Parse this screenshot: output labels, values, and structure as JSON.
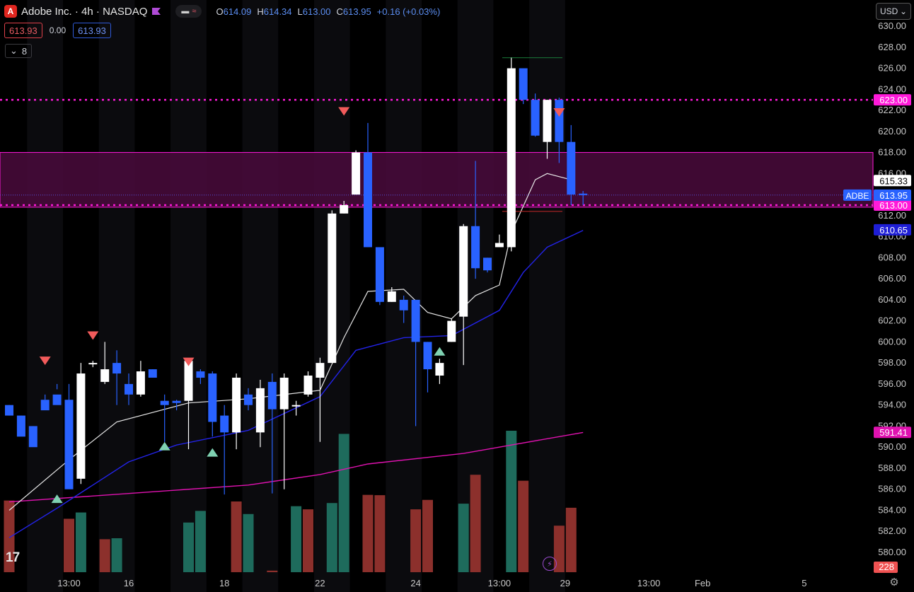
{
  "header": {
    "title": "Adobe Inc. · 4h · NASDAQ",
    "ohlc": [
      {
        "k": "O",
        "v": "614.09"
      },
      {
        "k": "H",
        "v": "614.34"
      },
      {
        "k": "L",
        "v": "613.00"
      },
      {
        "k": "C",
        "v": "613.95"
      }
    ],
    "change": "+0.16 (+0.03%)",
    "bid": "613.93",
    "spread": "0.00",
    "ask": "613.93",
    "indicator_count": "8",
    "currency": "USD"
  },
  "icons": {
    "logo": "adobe-logo-icon",
    "flag": "flag-icon",
    "minus": "minus-icon",
    "wave": "approx-icon",
    "chevron": "chevron-down-icon",
    "tv": "tradingview-logo-icon",
    "flash": "flash-icon",
    "gear": "gear-icon"
  },
  "colors": {
    "background": "#000000",
    "bull_candle": "#ffffff",
    "bear_candle": "#2962ff",
    "level_line": "#ff1ad9",
    "zone_fill": "#4a0a3c",
    "ema_fast": "#e6e6e6",
    "ema_mid": "#2323e8",
    "ema_slow": "#e012b0",
    "vol_up": "#1e6b5c",
    "vol_down": "#8c302c",
    "marker_sell": "#f25b5b",
    "marker_buy": "#7fd1b2"
  },
  "chart_data": {
    "type": "candlestick",
    "symbol": "ADBE",
    "interval": "4h",
    "ylim": [
      579,
      631
    ],
    "y_ticks": [
      "630.00",
      "628.00",
      "626.00",
      "624.00",
      "622.00",
      "620.00",
      "618.00",
      "616.00",
      "614.00",
      "612.00",
      "610.00",
      "608.00",
      "606.00",
      "604.00",
      "602.00",
      "600.00",
      "598.00",
      "596.00",
      "594.00",
      "592.00",
      "590.00",
      "588.00",
      "586.00",
      "584.00",
      "582.00",
      "580.00"
    ],
    "x_ticks": [
      "13:00",
      "16",
      "18",
      "22",
      "24",
      "13:00",
      "29",
      "13:00",
      "Feb",
      "5"
    ],
    "candles": [
      [
        594.0,
        593.0,
        594.0,
        593.0
      ],
      [
        593.0,
        591.0,
        593.0,
        592.0
      ],
      [
        592.0,
        590.0,
        592.0,
        591.0
      ],
      [
        594.5,
        593.5,
        595.0,
        594.5
      ],
      [
        595.0,
        594.0,
        596.0,
        595.5
      ],
      [
        594.5,
        586.0,
        596.0,
        587.0
      ],
      [
        587.0,
        597.0,
        598.0,
        586.5
      ],
      [
        598.0,
        598.0,
        598.2,
        597.6
      ],
      [
        596.2,
        597.4,
        600.0,
        596.0
      ],
      [
        598.0,
        597.0,
        599.2,
        594.0
      ],
      [
        596.0,
        595.0,
        597.0,
        594.0
      ],
      [
        595.0,
        597.2,
        598.2,
        594.8
      ],
      [
        597.4,
        596.6,
        597.4,
        596.6
      ],
      [
        594.4,
        594.0,
        595.0,
        590.5
      ],
      [
        594.4,
        594.2,
        594.5,
        593.5
      ],
      [
        594.4,
        598.2,
        598.4,
        589.8
      ],
      [
        597.2,
        596.6,
        597.4,
        596.0
      ],
      [
        597.0,
        592.4,
        597.2,
        591.0
      ],
      [
        593.0,
        591.4,
        594.0,
        585.5
      ],
      [
        591.4,
        596.6,
        597.0,
        589.8
      ],
      [
        595.0,
        594.0,
        595.6,
        593.5
      ],
      [
        591.4,
        595.6,
        596.4,
        590.0
      ],
      [
        596.2,
        593.6,
        597.0,
        585.6
      ],
      [
        593.6,
        596.6,
        597.0,
        586.0
      ],
      [
        594.0,
        594.0,
        594.4,
        593.0
      ],
      [
        595.0,
        596.8,
        597.2,
        594.8
      ],
      [
        596.6,
        598.0,
        598.5,
        590.5
      ],
      [
        598.0,
        612.2,
        612.5,
        598.0
      ],
      [
        612.2,
        613.0,
        613.4,
        612.2
      ],
      [
        614.0,
        618.0,
        618.2,
        614.0
      ],
      [
        618.0,
        609.0,
        620.8,
        609.0
      ],
      [
        609.0,
        603.8,
        609.0,
        603.5
      ],
      [
        603.8,
        604.8,
        605.2,
        603.8
      ],
      [
        604.0,
        603.0,
        604.4,
        601.8
      ],
      [
        604.0,
        600.0,
        604.0,
        592.0
      ],
      [
        600.0,
        597.4,
        600.0,
        595.2
      ],
      [
        596.8,
        598.0,
        598.4,
        596.0
      ],
      [
        600.0,
        602.0,
        602.2,
        600.0
      ],
      [
        602.4,
        611.0,
        611.2,
        597.8
      ],
      [
        611.0,
        607.0,
        617.2,
        606.0
      ],
      [
        608.0,
        606.8,
        608.0,
        606.6
      ],
      [
        609.0,
        609.4,
        610.2,
        609.0
      ],
      [
        609.0,
        626.0,
        627.0,
        608.6
      ],
      [
        626.0,
        623.0,
        626.0,
        622.6
      ],
      [
        623.0,
        619.6,
        623.6,
        619.5
      ],
      [
        619.0,
        623.0,
        623.0,
        617.4
      ],
      [
        623.0,
        619.0,
        623.2,
        617.0
      ],
      [
        619.0,
        614.0,
        620.6,
        613.0
      ],
      [
        614.09,
        613.95,
        614.34,
        613.0
      ]
    ],
    "volume": [
      {
        "v": 228,
        "up": false
      },
      {
        "v": 0,
        "up": true
      },
      {
        "v": 0,
        "up": true
      },
      {
        "v": 0,
        "up": true
      },
      {
        "v": 0,
        "up": false
      },
      {
        "v": 170,
        "up": false
      },
      {
        "v": 190,
        "up": true
      },
      {
        "v": 0,
        "up": true
      },
      {
        "v": 105,
        "up": false
      },
      {
        "v": 108,
        "up": true
      },
      {
        "v": 0,
        "up": false
      },
      {
        "v": 0,
        "up": true
      },
      {
        "v": 0,
        "up": true
      },
      {
        "v": 0,
        "up": false
      },
      {
        "v": 0,
        "up": true
      },
      {
        "v": 158,
        "up": true
      },
      {
        "v": 195,
        "up": true
      },
      {
        "v": 0,
        "up": false
      },
      {
        "v": 0,
        "up": false
      },
      {
        "v": 225,
        "up": false
      },
      {
        "v": 185,
        "up": true
      },
      {
        "v": 0,
        "up": true
      },
      {
        "v": 5,
        "up": false
      },
      {
        "v": 0,
        "up": true
      },
      {
        "v": 210,
        "up": true
      },
      {
        "v": 200,
        "up": false
      },
      {
        "v": 0,
        "up": true
      },
      {
        "v": 220,
        "up": true
      },
      {
        "v": 440,
        "up": true
      },
      {
        "v": 0,
        "up": true
      },
      {
        "v": 246,
        "up": false
      },
      {
        "v": 245,
        "up": false
      },
      {
        "v": 0,
        "up": true
      },
      {
        "v": 0,
        "up": false
      },
      {
        "v": 200,
        "up": false
      },
      {
        "v": 230,
        "up": false
      },
      {
        "v": 0,
        "up": true
      },
      {
        "v": 0,
        "up": true
      },
      {
        "v": 218,
        "up": true
      },
      {
        "v": 310,
        "up": false
      },
      {
        "v": 0,
        "up": true
      },
      {
        "v": 0,
        "up": true
      },
      {
        "v": 450,
        "up": true
      },
      {
        "v": 291,
        "up": false
      },
      {
        "v": 0,
        "up": false
      },
      {
        "v": 0,
        "up": true
      },
      {
        "v": 148,
        "up": false
      },
      {
        "v": 205,
        "up": false
      },
      {
        "v": 0,
        "up": true
      }
    ],
    "ema_fast": [
      [
        0,
        584.0
      ],
      [
        5,
        588.8
      ],
      [
        9,
        592.4
      ],
      [
        15,
        594.2
      ],
      [
        20,
        594.6
      ],
      [
        26,
        595.4
      ],
      [
        28,
        600.4
      ],
      [
        30,
        604.8
      ],
      [
        33,
        605.0
      ],
      [
        35,
        602.8
      ],
      [
        37,
        602.2
      ],
      [
        39,
        604.4
      ],
      [
        41,
        605.4
      ],
      [
        42,
        610.4
      ],
      [
        44,
        615.4
      ],
      [
        45,
        616.0
      ],
      [
        47,
        615.4
      ]
    ],
    "ema_mid": [
      [
        0,
        581.4
      ],
      [
        4,
        584.2
      ],
      [
        10,
        588.6
      ],
      [
        14,
        590.2
      ],
      [
        20,
        591.6
      ],
      [
        26,
        594.8
      ],
      [
        29,
        599.2
      ],
      [
        33,
        600.4
      ],
      [
        37,
        600.6
      ],
      [
        41,
        603.0
      ],
      [
        43,
        606.6
      ],
      [
        45,
        609.0
      ],
      [
        48,
        610.6
      ]
    ],
    "ema_slow": [
      [
        0,
        584.8
      ],
      [
        10,
        585.6
      ],
      [
        20,
        586.4
      ],
      [
        26,
        587.4
      ],
      [
        30,
        588.4
      ],
      [
        38,
        589.4
      ],
      [
        42,
        590.2
      ],
      [
        48,
        591.4
      ]
    ],
    "markers": [
      {
        "i": 3,
        "type": "sell",
        "p": 598.2
      },
      {
        "i": 7,
        "type": "sell",
        "p": 600.6
      },
      {
        "i": 15,
        "type": "sell",
        "p": 598.1
      },
      {
        "i": 28,
        "type": "sell",
        "p": 621.9
      },
      {
        "i": 46,
        "type": "sell",
        "p": 621.8
      },
      {
        "i": 4,
        "type": "buy",
        "p": 585.1
      },
      {
        "i": 13,
        "type": "buy",
        "p": 590.1
      },
      {
        "i": 17,
        "type": "buy",
        "p": 589.5
      },
      {
        "i": 36,
        "type": "buy",
        "p": 599.1
      }
    ],
    "levels": [
      {
        "price": 623.0,
        "label": "623.00"
      },
      {
        "price": 613.0,
        "label": "613.00"
      }
    ],
    "zone": {
      "top": 618.0,
      "bottom": 612.8
    },
    "short_lines": [
      {
        "price": 627.0,
        "color": "#1a7a3a"
      },
      {
        "price": 612.4,
        "color": "#c62828"
      }
    ],
    "price_tags": [
      {
        "price": 615.33,
        "label": "615.33",
        "bg": "#ffffff",
        "fg": "#000000"
      },
      {
        "price": 613.95,
        "label": "613.95",
        "bg": "#2962ff",
        "fg": "#ffffff"
      },
      {
        "price": 610.65,
        "label": "610.65",
        "bg": "#1e1ed6",
        "fg": "#ffffff"
      },
      {
        "price": 591.41,
        "label": "591.41",
        "bg": "#e012b0",
        "fg": "#ffffff"
      }
    ],
    "last_price_tag": {
      "price": 613.95,
      "symbol": "ADBE"
    },
    "volume_tag": "228",
    "grid": false,
    "legend": "none"
  }
}
